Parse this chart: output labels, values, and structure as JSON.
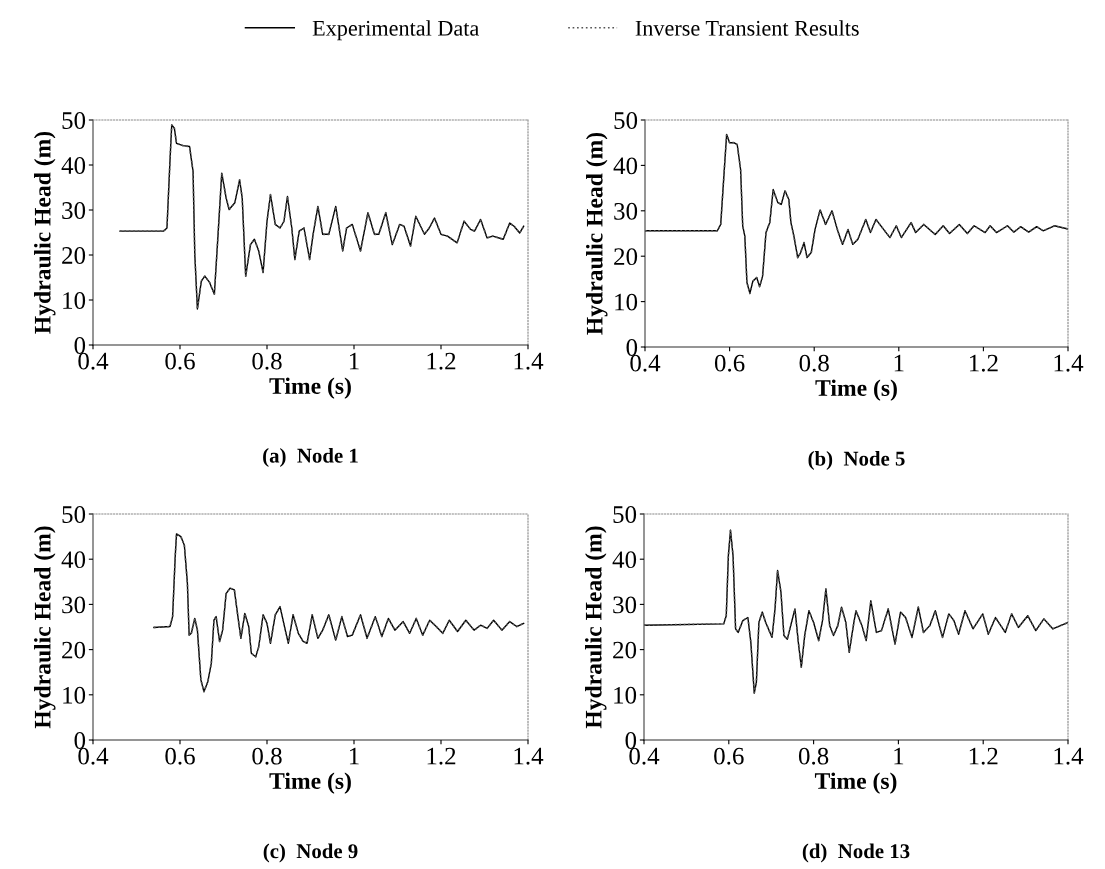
{
  "chart_data": [
    {
      "type": "line",
      "title": "(a)  Node 1",
      "xlabel": "Time (s)",
      "ylabel": "Hydraulic Head (m)",
      "legend": "top",
      "xlim": [
        0.4,
        1.4
      ],
      "ylim": [
        0,
        50
      ],
      "xticks": [
        0.4,
        0.6,
        0.8,
        1,
        1.2,
        1.4
      ],
      "yticks": [
        0,
        10,
        20,
        30,
        40,
        50
      ],
      "x": [
        0.462,
        0.562,
        0.57,
        0.577,
        0.581,
        0.587,
        0.592,
        0.607,
        0.622,
        0.63,
        0.634,
        0.64,
        0.649,
        0.657,
        0.668,
        0.679,
        0.687,
        0.696,
        0.706,
        0.713,
        0.726,
        0.737,
        0.743,
        0.751,
        0.762,
        0.771,
        0.781,
        0.791,
        0.8,
        0.808,
        0.819,
        0.83,
        0.839,
        0.847,
        0.857,
        0.864,
        0.874,
        0.885,
        0.898,
        0.906,
        0.917,
        0.928,
        0.942,
        0.958,
        0.974,
        0.983,
        0.996,
        1.015,
        1.032,
        1.047,
        1.057,
        1.073,
        1.088,
        1.105,
        1.115,
        1.13,
        1.142,
        1.162,
        1.173,
        1.185,
        1.2,
        1.215,
        1.237,
        1.253,
        1.268,
        1.277,
        1.291,
        1.306,
        1.319,
        1.343,
        1.358,
        1.368,
        1.381,
        1.39
      ],
      "series": [
        {
          "name": "Experimental Data",
          "color": "#000000",
          "line_style": "solid",
          "values": [
            25.3,
            25.3,
            26,
            41,
            48.9,
            48.2,
            44.8,
            44.3,
            44.1,
            38.6,
            20.1,
            8,
            14.2,
            15.3,
            13.9,
            11.3,
            23.8,
            38.2,
            32.7,
            30.1,
            31.6,
            36.7,
            32.7,
            15.3,
            22.3,
            23.5,
            20.9,
            16.1,
            27.5,
            33.4,
            26.8,
            26,
            27.5,
            33,
            26,
            19,
            25.3,
            26,
            19,
            24.6,
            30.8,
            24.6,
            24.6,
            30.8,
            20.9,
            26,
            26.8,
            20.9,
            29.4,
            24.6,
            24.6,
            29.4,
            22.3,
            26.8,
            26.4,
            22,
            28.6,
            24.6,
            26,
            28.2,
            24.6,
            24.2,
            22.7,
            27.5,
            25.7,
            25.3,
            27.9,
            23.8,
            24.2,
            23.5,
            27.1,
            26.4,
            24.9,
            26.4
          ]
        },
        {
          "name": "Inverse Transient Results",
          "color": "#555555",
          "line_style": "dotted",
          "values": [
            25.3,
            25.3,
            26,
            41,
            48.9,
            48.2,
            44.8,
            44.3,
            44.1,
            38.6,
            20.1,
            8,
            14.2,
            15.3,
            13.9,
            11.3,
            23.8,
            38.2,
            32.7,
            30.1,
            31.6,
            36.7,
            32.7,
            15.3,
            22.3,
            23.5,
            20.9,
            16.1,
            27.5,
            33.4,
            26.8,
            26,
            27.5,
            33,
            26,
            19,
            25.3,
            26,
            19,
            24.6,
            30.8,
            24.6,
            24.6,
            30.8,
            20.9,
            26,
            26.8,
            20.9,
            29.4,
            24.6,
            24.6,
            29.4,
            22.3,
            26.8,
            26.4,
            22,
            28.6,
            24.6,
            26,
            28.2,
            24.6,
            24.2,
            22.7,
            27.5,
            25.7,
            25.3,
            27.9,
            23.8,
            24.2,
            23.5,
            27.1,
            26.4,
            24.9,
            26.4
          ]
        }
      ]
    },
    {
      "type": "line",
      "title": "(b)  Node 5",
      "xlabel": "Time (s)",
      "ylabel": "Hydraulic Head (m)",
      "xlim": [
        0.4,
        1.4
      ],
      "ylim": [
        0,
        50
      ],
      "xticks": [
        0.4,
        0.6,
        0.8,
        1,
        1.2,
        1.4
      ],
      "yticks": [
        0,
        10,
        20,
        30,
        40,
        50
      ],
      "x": [
        0.4,
        0.571,
        0.579,
        0.587,
        0.593,
        0.6,
        0.61,
        0.618,
        0.626,
        0.631,
        0.636,
        0.641,
        0.648,
        0.655,
        0.664,
        0.671,
        0.678,
        0.686,
        0.695,
        0.703,
        0.714,
        0.722,
        0.731,
        0.74,
        0.745,
        0.752,
        0.761,
        0.768,
        0.776,
        0.783,
        0.793,
        0.802,
        0.814,
        0.827,
        0.842,
        0.85,
        0.857,
        0.867,
        0.88,
        0.891,
        0.903,
        0.922,
        0.933,
        0.946,
        0.964,
        0.979,
        0.994,
        1.006,
        1.029,
        1.04,
        1.059,
        1.086,
        1.105,
        1.12,
        1.143,
        1.162,
        1.178,
        1.204,
        1.216,
        1.231,
        1.257,
        1.272,
        1.288,
        1.307,
        1.326,
        1.341,
        1.368,
        1.4
      ],
      "series": [
        {
          "color": "#000000",
          "line_style": "solid",
          "values": [
            25.6,
            25.6,
            27,
            38.4,
            46.8,
            45,
            45,
            44.6,
            39.1,
            26.7,
            24.4,
            14.2,
            11.8,
            14.5,
            15.3,
            13.3,
            15.6,
            25.2,
            27.4,
            34.7,
            31.8,
            31.4,
            34.4,
            32.5,
            27.4,
            24.4,
            19.7,
            20.8,
            23,
            19.7,
            20.8,
            25.9,
            30.2,
            27,
            30,
            27.4,
            25.2,
            22.6,
            25.9,
            22.6,
            23.7,
            28.1,
            25.2,
            28.1,
            25.9,
            24.1,
            26.7,
            24.1,
            27.4,
            25.2,
            27,
            24.8,
            26.7,
            25,
            27,
            25,
            26.7,
            25.2,
            26.7,
            25.2,
            26.7,
            25.3,
            26.5,
            25.3,
            26.5,
            25.6,
            26.7,
            26
          ]
        },
        {
          "color": "#555555",
          "line_style": "dotted",
          "values": [
            25.6,
            25.6,
            27,
            38.4,
            46.8,
            45,
            45,
            44.6,
            39.1,
            26.7,
            24.4,
            14.2,
            11.8,
            14.5,
            15.3,
            13.3,
            15.6,
            25.2,
            27.4,
            34.7,
            31.8,
            31.4,
            34.4,
            32.5,
            27.4,
            24.4,
            19.7,
            20.8,
            23,
            19.7,
            20.8,
            25.9,
            30.2,
            27,
            30,
            27.4,
            25.2,
            22.6,
            25.9,
            22.6,
            23.7,
            28.1,
            25.2,
            28.1,
            25.9,
            24.1,
            26.7,
            24.1,
            27.4,
            25.2,
            27,
            24.8,
            26.7,
            25,
            27,
            25,
            26.7,
            25.2,
            26.7,
            25.2,
            26.7,
            25.3,
            26.5,
            25.3,
            26.5,
            25.6,
            26.7,
            26
          ]
        }
      ]
    },
    {
      "type": "line",
      "title": "(c)  Node 9",
      "xlabel": "Time (s)",
      "ylabel": "Hydraulic Head (m)",
      "xlim": [
        0.4,
        1.4
      ],
      "ylim": [
        0,
        50
      ],
      "xticks": [
        0.4,
        0.6,
        0.8,
        1,
        1.2,
        1.4
      ],
      "yticks": [
        0,
        10,
        20,
        30,
        40,
        50
      ],
      "x": [
        0.54,
        0.577,
        0.583,
        0.589,
        0.592,
        0.602,
        0.61,
        0.617,
        0.621,
        0.626,
        0.634,
        0.64,
        0.648,
        0.655,
        0.664,
        0.672,
        0.678,
        0.683,
        0.691,
        0.698,
        0.706,
        0.715,
        0.725,
        0.731,
        0.74,
        0.749,
        0.758,
        0.764,
        0.774,
        0.781,
        0.791,
        0.8,
        0.808,
        0.819,
        0.83,
        0.842,
        0.849,
        0.86,
        0.872,
        0.883,
        0.892,
        0.904,
        0.917,
        0.928,
        0.942,
        0.958,
        0.972,
        0.985,
        0.996,
        1.015,
        1.03,
        1.049,
        1.064,
        1.079,
        1.094,
        1.113,
        1.128,
        1.143,
        1.158,
        1.174,
        1.189,
        1.204,
        1.219,
        1.238,
        1.257,
        1.276,
        1.291,
        1.306,
        1.321,
        1.34,
        1.358,
        1.374,
        1.39
      ],
      "series": [
        {
          "color": "#000000",
          "line_style": "solid",
          "values": [
            24.9,
            25.1,
            27.3,
            40.6,
            45.6,
            45,
            43.1,
            34.7,
            23.2,
            23.6,
            26.9,
            24.3,
            13.3,
            10.7,
            12.9,
            17,
            26.5,
            27.3,
            21.8,
            24.3,
            32.4,
            33.6,
            33.2,
            28.8,
            22.5,
            28,
            25.1,
            19.2,
            18.4,
            20.6,
            27.7,
            25.8,
            21.4,
            27.7,
            29.5,
            24.3,
            21.4,
            27.7,
            23.6,
            21.8,
            21.4,
            27.7,
            22.5,
            24.3,
            27.7,
            22.1,
            27.3,
            22.9,
            23.2,
            27.7,
            22.5,
            27.3,
            22.9,
            26.9,
            24.3,
            26.2,
            23.6,
            26.9,
            23.2,
            26.5,
            25.1,
            23.6,
            26.5,
            24,
            26.5,
            24.3,
            25.4,
            24.7,
            26.5,
            24.3,
            26.2,
            25.1,
            25.8
          ]
        },
        {
          "color": "#555555",
          "line_style": "dotted",
          "values": [
            24.9,
            25.1,
            27.3,
            40.6,
            45.6,
            45,
            43.1,
            34.7,
            23.2,
            23.6,
            26.9,
            24.3,
            13.3,
            10.7,
            12.9,
            17,
            26.5,
            27.3,
            21.8,
            24.3,
            32.4,
            33.6,
            33.2,
            28.8,
            22.5,
            28,
            25.1,
            19.2,
            18.4,
            20.6,
            27.7,
            25.8,
            21.4,
            27.7,
            29.5,
            24.3,
            21.4,
            27.7,
            23.6,
            21.8,
            21.4,
            27.7,
            22.5,
            24.3,
            27.7,
            22.1,
            27.3,
            22.9,
            23.2,
            27.7,
            22.5,
            27.3,
            22.9,
            26.9,
            24.3,
            26.2,
            23.6,
            26.9,
            23.2,
            26.5,
            25.1,
            23.6,
            26.5,
            24,
            26.5,
            24.3,
            25.4,
            24.7,
            26.5,
            24.3,
            26.2,
            25.1,
            25.8
          ]
        }
      ]
    },
    {
      "type": "line",
      "title": "(d)  Node 13",
      "xlabel": "Time (s)",
      "ylabel": "Hydraulic Head (m)",
      "xlim": [
        0.4,
        1.4
      ],
      "ylim": [
        0,
        50
      ],
      "xticks": [
        0.4,
        0.6,
        0.8,
        1,
        1.2,
        1.4
      ],
      "yticks": [
        0,
        10,
        20,
        30,
        40,
        50
      ],
      "x": [
        0.4,
        0.588,
        0.594,
        0.599,
        0.604,
        0.61,
        0.616,
        0.622,
        0.633,
        0.645,
        0.652,
        0.66,
        0.665,
        0.671,
        0.679,
        0.687,
        0.702,
        0.709,
        0.715,
        0.723,
        0.73,
        0.738,
        0.747,
        0.756,
        0.764,
        0.771,
        0.779,
        0.789,
        0.8,
        0.812,
        0.821,
        0.829,
        0.838,
        0.847,
        0.857,
        0.866,
        0.876,
        0.884,
        0.895,
        0.9,
        0.914,
        0.924,
        0.935,
        0.948,
        0.96,
        0.976,
        0.992,
        1.005,
        1.017,
        1.032,
        1.047,
        1.059,
        1.074,
        1.087,
        1.104,
        1.119,
        1.131,
        1.142,
        1.157,
        1.176,
        1.199,
        1.212,
        1.229,
        1.252,
        1.267,
        1.283,
        1.305,
        1.324,
        1.343,
        1.364,
        1.4
      ],
      "series": [
        {
          "color": "#000000",
          "line_style": "solid",
          "values": [
            25.4,
            25.7,
            27.5,
            40.8,
            46.4,
            40.8,
            24.6,
            23.8,
            26.4,
            27.1,
            21.6,
            10.4,
            12.7,
            26,
            28.3,
            26,
            22.7,
            29,
            37.5,
            32.7,
            23.1,
            22.3,
            25.7,
            29,
            21.6,
            16.1,
            23.1,
            28.6,
            26,
            22,
            26.4,
            33.4,
            25.3,
            23.1,
            25.3,
            29.4,
            26,
            19.4,
            26,
            28.6,
            25.3,
            22,
            30.8,
            23.8,
            24.2,
            29,
            21.2,
            28.3,
            27.1,
            22.7,
            29.4,
            23.8,
            25.3,
            28.6,
            22.7,
            27.9,
            26.4,
            23.4,
            28.6,
            24.6,
            27.9,
            23.4,
            27.1,
            23.8,
            27.9,
            24.9,
            27.5,
            24.2,
            26.8,
            24.6,
            26
          ]
        },
        {
          "color": "#555555",
          "line_style": "dotted",
          "values": [
            25.4,
            25.7,
            27.5,
            40.8,
            46.4,
            40.8,
            24.6,
            23.8,
            26.4,
            27.1,
            21.6,
            10.4,
            12.7,
            26,
            28.3,
            26,
            22.7,
            29,
            37.5,
            32.7,
            23.1,
            22.3,
            25.7,
            29,
            21.6,
            16.1,
            23.1,
            28.6,
            26,
            22,
            26.4,
            33.4,
            25.3,
            23.1,
            25.3,
            29.4,
            26,
            19.4,
            26,
            28.6,
            25.3,
            22,
            30.8,
            23.8,
            24.2,
            29,
            21.2,
            28.3,
            27.1,
            22.7,
            29.4,
            23.8,
            25.3,
            28.6,
            22.7,
            27.9,
            26.4,
            23.4,
            28.6,
            24.6,
            27.9,
            23.4,
            27.1,
            23.8,
            27.9,
            24.9,
            27.5,
            24.2,
            26.8,
            24.6,
            26
          ]
        }
      ]
    }
  ]
}
